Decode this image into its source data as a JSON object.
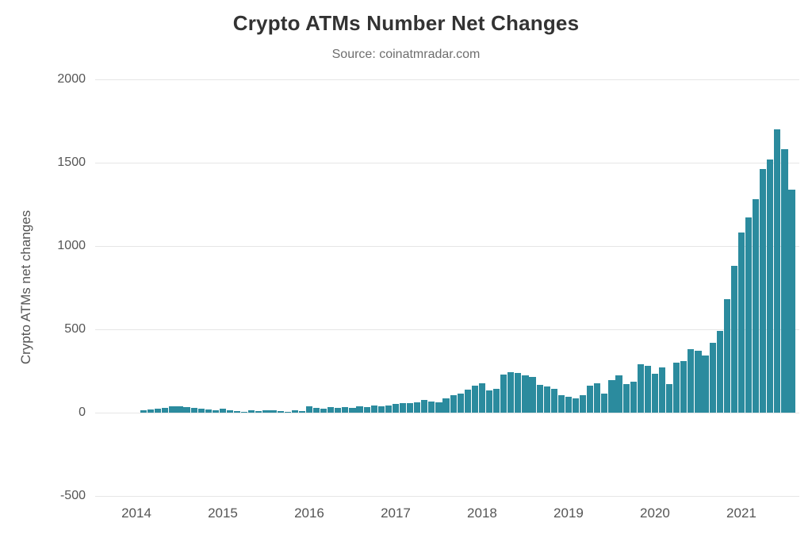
{
  "colors": {
    "bar": "#2b8b9e",
    "grid": "#e6e6e6",
    "title": "#333333",
    "subtitle": "#6e6e6e",
    "axis_text": "#555555"
  },
  "chart_data": {
    "type": "bar",
    "title": "Crypto ATMs Number Net Changes",
    "subtitle": "Source: coinatmradar.com",
    "xlabel": "",
    "ylabel": "Crypto ATMs net changes",
    "ylim": [
      -500,
      2000
    ],
    "yticks": [
      -500,
      0,
      500,
      1000,
      1500,
      2000
    ],
    "ytick_labels": [
      "-500",
      "0",
      "500",
      "1000",
      "1500",
      "2000"
    ],
    "xticks": [
      "2014",
      "2015",
      "2016",
      "2017",
      "2018",
      "2019",
      "2020",
      "2021"
    ],
    "grid": true,
    "legend": false,
    "x": [
      "2014-02",
      "2014-03",
      "2014-04",
      "2014-05",
      "2014-06",
      "2014-07",
      "2014-08",
      "2014-09",
      "2014-10",
      "2014-11",
      "2014-12",
      "2015-01",
      "2015-02",
      "2015-03",
      "2015-04",
      "2015-05",
      "2015-06",
      "2015-07",
      "2015-08",
      "2015-09",
      "2015-10",
      "2015-11",
      "2015-12",
      "2016-01",
      "2016-02",
      "2016-03",
      "2016-04",
      "2016-05",
      "2016-06",
      "2016-07",
      "2016-08",
      "2016-09",
      "2016-10",
      "2016-11",
      "2016-12",
      "2017-01",
      "2017-02",
      "2017-03",
      "2017-04",
      "2017-05",
      "2017-06",
      "2017-07",
      "2017-08",
      "2017-09",
      "2017-10",
      "2017-11",
      "2017-12",
      "2018-01",
      "2018-02",
      "2018-03",
      "2018-04",
      "2018-05",
      "2018-06",
      "2018-07",
      "2018-08",
      "2018-09",
      "2018-10",
      "2018-11",
      "2018-12",
      "2019-01",
      "2019-02",
      "2019-03",
      "2019-04",
      "2019-05",
      "2019-06",
      "2019-07",
      "2019-08",
      "2019-09",
      "2019-10",
      "2019-11",
      "2019-12",
      "2020-01",
      "2020-02",
      "2020-03",
      "2020-04",
      "2020-05",
      "2020-06",
      "2020-07",
      "2020-08",
      "2020-09",
      "2020-10",
      "2020-11",
      "2020-12",
      "2021-01",
      "2021-02",
      "2021-03",
      "2021-04",
      "2021-05",
      "2021-06",
      "2021-07",
      "2021-08"
    ],
    "values": [
      15,
      18,
      22,
      28,
      38,
      40,
      35,
      30,
      25,
      18,
      15,
      22,
      12,
      8,
      6,
      12,
      8,
      12,
      16,
      10,
      6,
      16,
      10,
      38,
      30,
      25,
      32,
      28,
      32,
      28,
      36,
      32,
      42,
      40,
      45,
      52,
      58,
      55,
      62,
      75,
      68,
      62,
      88,
      105,
      115,
      140,
      160,
      175,
      135,
      145,
      230,
      245,
      240,
      225,
      215,
      165,
      155,
      145,
      105,
      95,
      85,
      105,
      160,
      175,
      115,
      195,
      225,
      170,
      185,
      290,
      280,
      235,
      270,
      170,
      300,
      310,
      380,
      370,
      345,
      420,
      490,
      680,
      880,
      1080,
      1170,
      1280,
      1460,
      1520,
      1700,
      1580,
      1340
    ]
  }
}
